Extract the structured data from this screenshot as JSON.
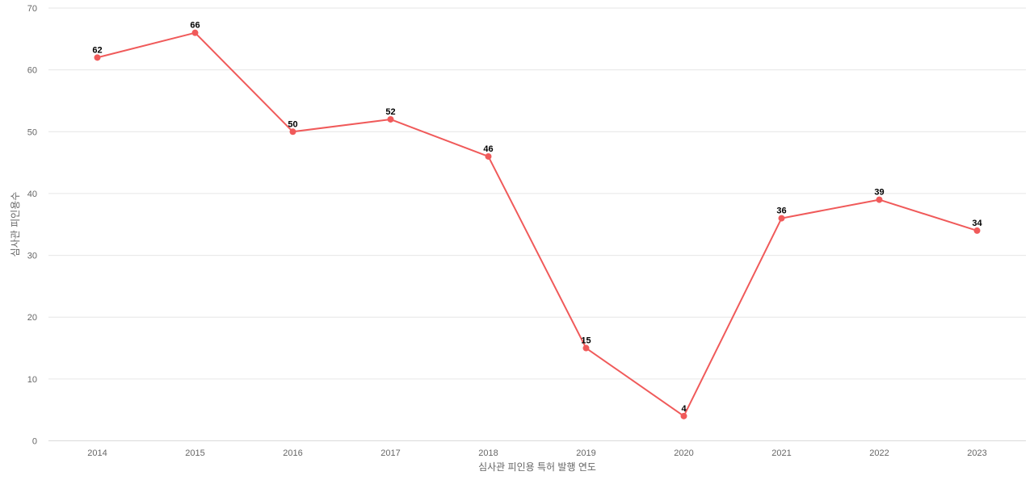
{
  "chart_data": {
    "type": "line",
    "title": "",
    "xlabel": "심사관 피인용 특허 발행 연도",
    "ylabel": "심사관 피인용수",
    "categories": [
      "2014",
      "2015",
      "2016",
      "2017",
      "2018",
      "2019",
      "2020",
      "2021",
      "2022",
      "2023"
    ],
    "series": [
      {
        "values": [
          62,
          66,
          50,
          52,
          46,
          15,
          4,
          36,
          39,
          34
        ],
        "color": "#f05a5a"
      }
    ],
    "ylim": [
      0,
      70
    ],
    "yticks": [
      0,
      10,
      20,
      30,
      40,
      50,
      60,
      70
    ],
    "grid": true,
    "legend": "none",
    "data_labels": true
  }
}
